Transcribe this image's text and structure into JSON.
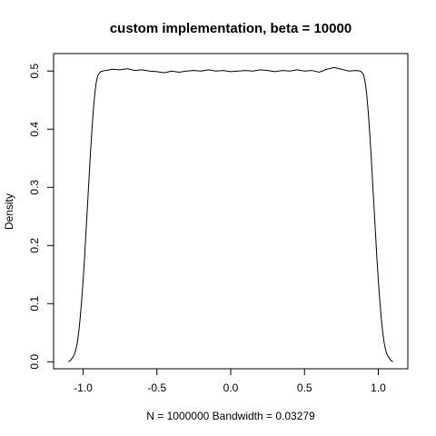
{
  "chart_data": {
    "type": "line",
    "title": "custom implementation, beta = 10000",
    "xlabel": "N = 1000000   Bandwidth = 0.03279",
    "ylabel": "Density",
    "xlim": [
      -1.2,
      1.2
    ],
    "ylim": [
      -0.012,
      0.53
    ],
    "xticks": [
      -1.0,
      -0.5,
      0.0,
      0.5,
      1.0
    ],
    "xtick_labels": [
      "-1.0",
      "-0.5",
      "0.0",
      "0.5",
      "1.0"
    ],
    "yticks": [
      0.0,
      0.1,
      0.2,
      0.3,
      0.4,
      0.5
    ],
    "ytick_labels": [
      "0.0",
      "0.1",
      "0.2",
      "0.3",
      "0.4",
      "0.5"
    ],
    "grid": false,
    "line_color": "#000000",
    "series": [
      {
        "x": [
          -1.098,
          -1.08,
          -1.06,
          -1.05,
          -1.04,
          -1.03,
          -1.02,
          -1.01,
          -1.0,
          -0.99,
          -0.98,
          -0.97,
          -0.96,
          -0.95,
          -0.94,
          -0.93,
          -0.92,
          -0.91,
          -0.9,
          -0.88,
          -0.85,
          -0.8,
          -0.75,
          -0.7,
          -0.65,
          -0.6,
          -0.55,
          -0.5,
          -0.45,
          -0.4,
          -0.35,
          -0.3,
          -0.25,
          -0.2,
          -0.15,
          -0.1,
          -0.05,
          0.0,
          0.05,
          0.1,
          0.15,
          0.2,
          0.25,
          0.3,
          0.35,
          0.4,
          0.45,
          0.5,
          0.55,
          0.6,
          0.65,
          0.7,
          0.75,
          0.8,
          0.85,
          0.88,
          0.9,
          0.91,
          0.92,
          0.93,
          0.94,
          0.95,
          0.96,
          0.97,
          0.98,
          0.99,
          1.0,
          1.01,
          1.02,
          1.03,
          1.04,
          1.05,
          1.06,
          1.08,
          1.098
        ],
        "y": [
          0.0,
          0.004,
          0.012,
          0.02,
          0.032,
          0.05,
          0.075,
          0.105,
          0.14,
          0.18,
          0.225,
          0.27,
          0.315,
          0.36,
          0.4,
          0.435,
          0.463,
          0.482,
          0.493,
          0.499,
          0.501,
          0.503,
          0.502,
          0.504,
          0.501,
          0.502,
          0.5,
          0.499,
          0.497,
          0.5,
          0.498,
          0.5,
          0.501,
          0.5,
          0.502,
          0.5,
          0.501,
          0.499,
          0.5,
          0.501,
          0.5,
          0.502,
          0.501,
          0.499,
          0.501,
          0.5,
          0.502,
          0.5,
          0.501,
          0.498,
          0.503,
          0.506,
          0.503,
          0.5,
          0.501,
          0.5,
          0.494,
          0.482,
          0.463,
          0.435,
          0.4,
          0.36,
          0.315,
          0.27,
          0.225,
          0.18,
          0.14,
          0.105,
          0.075,
          0.05,
          0.032,
          0.02,
          0.012,
          0.004,
          0.0
        ]
      }
    ]
  }
}
